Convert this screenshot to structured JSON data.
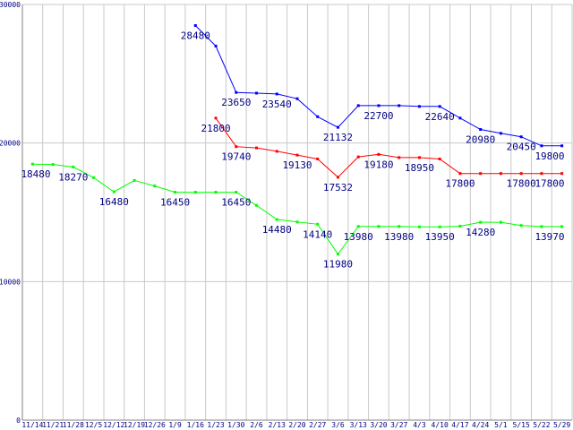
{
  "chart_data": {
    "type": "line",
    "title": "",
    "xlabel": "",
    "ylabel": "",
    "ylim": [
      0,
      30000
    ],
    "y_ticks": [
      0,
      10000,
      20000,
      30000
    ],
    "grid": true,
    "legend": "none",
    "categories": [
      "11/14",
      "11/21",
      "11/28",
      "12/5",
      "12/12",
      "12/19",
      "12/26",
      "1/9",
      "1/16",
      "1/23",
      "1/30",
      "2/6",
      "2/13",
      "2/20",
      "2/27",
      "3/6",
      "3/13",
      "3/20",
      "3/27",
      "4/3",
      "4/10",
      "4/17",
      "4/24",
      "5/1",
      "5/15",
      "5/22",
      "5/29"
    ],
    "series": [
      {
        "color": "#0000ff",
        "values": [
          null,
          null,
          null,
          null,
          null,
          null,
          null,
          null,
          28480,
          27000,
          23650,
          23600,
          23540,
          23200,
          21900,
          21132,
          22700,
          22700,
          22700,
          22640,
          22640,
          21800,
          20980,
          20700,
          20450,
          19800,
          19800
        ],
        "labels": {
          "8": "28480",
          "10": "23650",
          "12": "23540",
          "15": "21132",
          "17": "22700",
          "20": "22640",
          "22": "20980",
          "24": "20450",
          "26": "19800"
        }
      },
      {
        "color": "#ff0000",
        "values": [
          null,
          null,
          null,
          null,
          null,
          null,
          null,
          null,
          null,
          21800,
          19740,
          19650,
          19400,
          19130,
          18850,
          17532,
          19000,
          19180,
          18950,
          18950,
          18850,
          17800,
          17800,
          17800,
          17800,
          17800,
          17800
        ],
        "labels": {
          "9": "21800",
          "10": "19740",
          "13": "19130",
          "15": "17532",
          "17": "19180",
          "19": "18950",
          "21": "17800",
          "24": "17800",
          "26": "17800"
        }
      },
      {
        "color": "#00ff00",
        "values": [
          18480,
          18450,
          18270,
          17500,
          16480,
          17300,
          16900,
          16450,
          16450,
          16450,
          16450,
          15500,
          14480,
          14300,
          14140,
          11980,
          13980,
          13980,
          13980,
          13950,
          13950,
          14000,
          14280,
          14280,
          14050,
          13970,
          13970
        ],
        "labels": {
          "0": "18480",
          "2": "18270",
          "4": "16480",
          "7": "16450",
          "10": "16450",
          "12": "14480",
          "14": "14140",
          "15": "11980",
          "16": "13980",
          "18": "13980",
          "20": "13950",
          "22": "14280",
          "26": "13970"
        }
      }
    ]
  }
}
